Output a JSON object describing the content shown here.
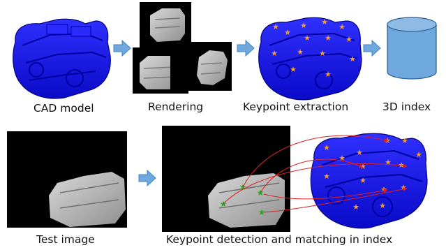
{
  "labels": {
    "cad_model": "CAD model",
    "rendering": "Rendering",
    "keypoint_extraction": "Keypoint extraction",
    "index_3d": "3D index",
    "test_image": "Test image",
    "detection_matching": "Keypoint detection and matching in index"
  },
  "colors": {
    "model_blue": "#1a1ae6",
    "arrow_blue": "#6fa8dc",
    "arrow_border": "#3d85c6",
    "cylinder_fill": "#6fa8dc",
    "cylinder_stroke": "#2a5d8f",
    "keypoint_orange": "#f39c34",
    "keypoint_green": "#1faa1f",
    "match_red": "#e02020",
    "render_bg": "#000000",
    "render_gray": "#bdbdbd"
  },
  "icons": {
    "flow_arrow": "right-arrow-icon",
    "keypoint": "star-icon",
    "index": "cylinder-icon"
  }
}
